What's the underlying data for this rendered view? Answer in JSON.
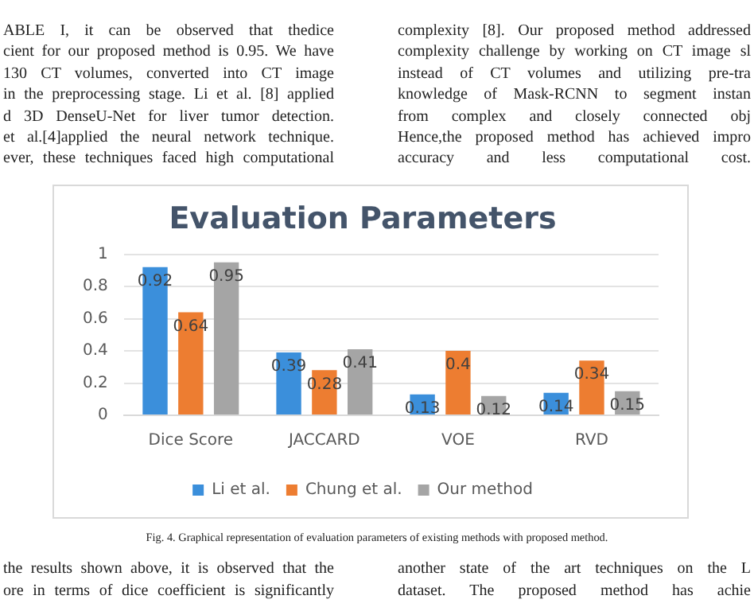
{
  "chart_data": {
    "type": "bar",
    "title": "Evaluation Parameters",
    "categories": [
      "Dice Score",
      "JACCARD",
      "VOE",
      "RVD"
    ],
    "series": [
      {
        "name": "Li et al.",
        "color": "#3b8fdb",
        "values": [
          0.92,
          0.39,
          0.13,
          0.14
        ]
      },
      {
        "name": "Chung et al.",
        "color": "#ed7d31",
        "values": [
          0.64,
          0.28,
          0.4,
          0.34
        ]
      },
      {
        "name": "Our method",
        "color": "#a5a5a5",
        "values": [
          0.95,
          0.41,
          0.12,
          0.15
        ]
      }
    ],
    "ylim": [
      0,
      1
    ],
    "yticks": [
      0,
      0.2,
      0.4,
      0.6,
      0.8,
      1
    ],
    "grid": "y",
    "legend": "bottom",
    "data_labels": true,
    "annotations": [
      "ABLE I, it can be observed that thedice",
      "cient for our proposed method is 0.95. We have",
      "130 CT volumes, converted into CT image",
      "in the preprocessing stage. Li et al. [8] applied",
      "d 3D DenseU-Net for liver tumor detection.",
      "et al.[4]applied the neural network technique.",
      "ever, these techniques faced high computational",
      "complexity [8]. Our proposed method addressed",
      "complexity challenge by working on CT image sl",
      "instead of CT volumes and utilizing pre-tra",
      "knowledge of Mask-RCNN to segment instan",
      "from complex and closely connected obj",
      "Hence,the proposed method has achieved impro",
      "accuracy and less computational cost.",
      "Fig. 4. Graphical representation of evaluation parameters of existing methods with proposed method.",
      "the results shown above, it is observed that the",
      "ore in terms of dice coefficient is significantly",
      "another state of the art techniques on the L",
      "dataset. The proposed method has achie"
    ]
  }
}
